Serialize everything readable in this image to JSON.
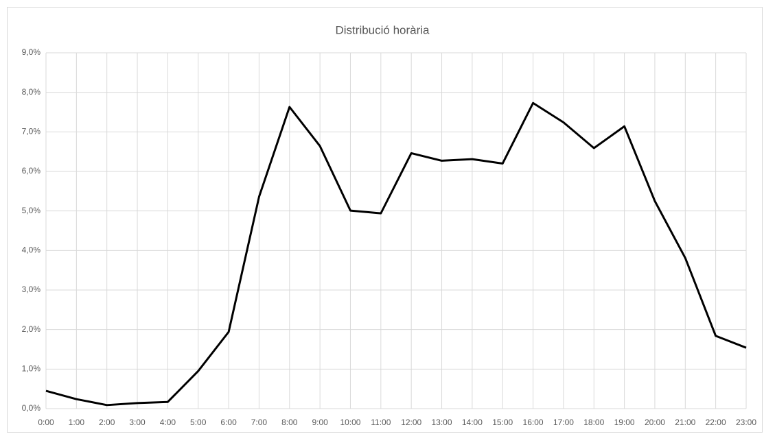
{
  "chart_data": {
    "type": "line",
    "title": "Distribució horària",
    "categories": [
      "0:00",
      "1:00",
      "2:00",
      "3:00",
      "4:00",
      "5:00",
      "6:00",
      "7:00",
      "8:00",
      "9:00",
      "10:00",
      "11:00",
      "12:00",
      "13:00",
      "14:00",
      "15:00",
      "16:00",
      "17:00",
      "18:00",
      "19:00",
      "20:00",
      "21:00",
      "22:00",
      "23:00"
    ],
    "values": [
      0.45,
      0.24,
      0.09,
      0.14,
      0.17,
      0.95,
      1.94,
      5.36,
      7.63,
      6.64,
      5.01,
      4.94,
      6.46,
      6.27,
      6.31,
      6.2,
      7.73,
      7.24,
      6.59,
      7.14,
      5.25,
      3.81,
      1.84,
      1.54
    ],
    "color": "#000000",
    "ylim": [
      0,
      9
    ],
    "yticks": [
      {
        "value": 0,
        "label": "0,0%"
      },
      {
        "value": 1,
        "label": "1,0%"
      },
      {
        "value": 2,
        "label": "2,0%"
      },
      {
        "value": 3,
        "label": "3,0%"
      },
      {
        "value": 4,
        "label": "4,0%"
      },
      {
        "value": 5,
        "label": "5,0%"
      },
      {
        "value": 6,
        "label": "6,0%"
      },
      {
        "value": 7,
        "label": "7,0%"
      },
      {
        "value": 8,
        "label": "8,0%"
      },
      {
        "value": 9,
        "label": "9,0%"
      }
    ],
    "grid": true
  }
}
